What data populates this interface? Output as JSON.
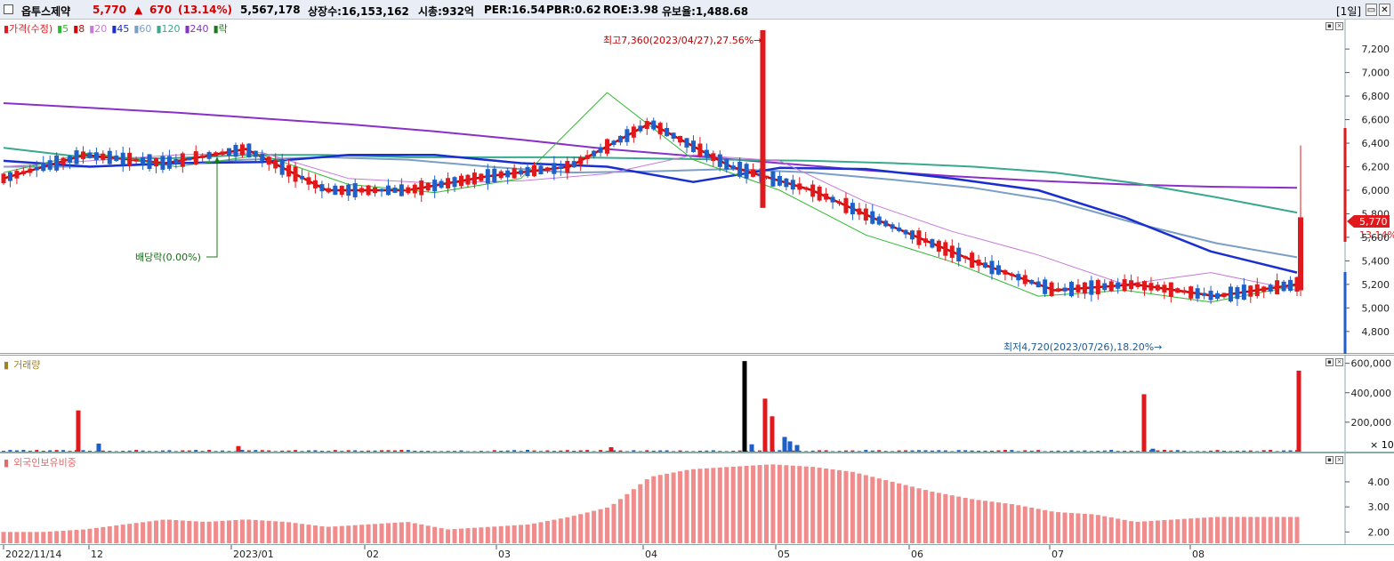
{
  "header": {
    "stock_name": "옵투스제약",
    "price": "5,770",
    "change_arrow": "▲",
    "change": "670",
    "change_pct": "(13.14%)",
    "volume": "5,567,178",
    "listed_shares": "상장수:16,153,162",
    "market_cap": "시총:932억",
    "per": "PER:16.54",
    "pbr": "PBR:0.62",
    "roe": "ROE:3.98",
    "retention": "유보율:1,488.68",
    "period_button": "[1일]"
  },
  "colors": {
    "up": "#e0191c",
    "down": "#1e5fc8",
    "ma5": "#2fb82f",
    "ma8": "#d40000",
    "ma20": "#c77ad8",
    "ma45": "#1a2fcf",
    "ma60": "#7a9ec6",
    "ma120": "#39a98e",
    "ma240": "#8b2fc9"
  },
  "price_panel": {
    "legend": [
      {
        "text": "가격(수정)",
        "color": "#e0191c"
      },
      {
        "text": "5",
        "color": "#2fb82f"
      },
      {
        "text": "8",
        "color": "#d40000"
      },
      {
        "text": "20",
        "color": "#c77ad8"
      },
      {
        "text": "45",
        "color": "#1a2fcf"
      },
      {
        "text": "60",
        "color": "#7a9ec6"
      },
      {
        "text": "120",
        "color": "#39a98e"
      },
      {
        "text": "240",
        "color": "#8b2fc9"
      },
      {
        "text": "락",
        "color": "#1a7a1a"
      }
    ],
    "annotation_high": "최고7,360(2023/04/27),27.56%→",
    "annotation_low": "최저4,720(2023/07/26),18.20%→",
    "annotation_dividend": "배당락(0.00%)",
    "price_tag": "5,770",
    "pct_tag": "13.14%"
  },
  "volume_panel": {
    "legend": "거래량",
    "multiplier": "× 10"
  },
  "foreign_panel": {
    "legend": "외국인보유비중"
  },
  "chart_data": [
    {
      "type": "candlestick",
      "title": "가격(수정)",
      "y_ticks": [
        4800,
        5000,
        5200,
        5400,
        5600,
        5800,
        6000,
        6200,
        6400,
        6600,
        6800,
        7000,
        7200
      ],
      "ylim": [
        4640,
        7420
      ],
      "x_ticks": [
        "2022/11/14",
        "12",
        "2023/01",
        "02",
        "03",
        "04",
        "05",
        "06",
        "07",
        "08"
      ],
      "last_close": 5770,
      "high": {
        "value": 7360,
        "date": "2023/04/27",
        "pct": 27.56
      },
      "low": {
        "value": 4720,
        "date": "2023/07/26",
        "pct": 18.2
      },
      "ma_series": [
        {
          "name": "240",
          "values": [
            6740,
            6700,
            6660,
            6610,
            6560,
            6500,
            6430,
            6350,
            6290,
            6230,
            6170,
            6120,
            6080,
            6050,
            6030,
            6020
          ]
        },
        {
          "name": "120",
          "values": [
            6360,
            6280,
            6270,
            6300,
            6300,
            6280,
            6280,
            6280,
            6270,
            6260,
            6250,
            6230,
            6200,
            6150,
            6060,
            5940,
            5810
          ]
        },
        {
          "name": "60",
          "values": [
            6200,
            6200,
            6220,
            6260,
            6280,
            6260,
            6200,
            6150,
            6160,
            6180,
            6150,
            6090,
            6020,
            5910,
            5720,
            5550,
            5430
          ]
        },
        {
          "name": "45",
          "values": [
            6250,
            6200,
            6230,
            6240,
            6300,
            6300,
            6230,
            6200,
            6070,
            6190,
            6180,
            6100,
            6000,
            5770,
            5480,
            5300
          ]
        },
        {
          "name": "20",
          "values": [
            6200,
            6250,
            6300,
            6320,
            6100,
            6060,
            6080,
            6140,
            6300,
            6250,
            5900,
            5650,
            5450,
            5200,
            5300,
            5150
          ]
        },
        {
          "name": "8",
          "values": [
            6100,
            6300,
            6230,
            6350,
            6000,
            6000,
            6120,
            6200,
            6570,
            6200,
            6000,
            5690,
            5400,
            5150,
            5200,
            5100,
            5200
          ]
        },
        {
          "name": "5",
          "values": [
            6150,
            6320,
            6200,
            6300,
            6050,
            5980,
            6100,
            6830,
            6260,
            6000,
            5620,
            5390,
            5100,
            5150,
            5050,
            5190
          ]
        }
      ]
    },
    {
      "type": "bar",
      "title": "거래량",
      "y_ticks": [
        200000,
        400000,
        600000
      ],
      "notable_values": [
        {
          "date": "12",
          "value": 280000
        },
        {
          "date": "04",
          "value": 615000
        },
        {
          "date": "05",
          "value": 360000
        },
        {
          "date": "07",
          "value": 390000
        },
        {
          "date": "08",
          "value": 550000
        }
      ]
    },
    {
      "type": "bar",
      "title": "외국인보유비중",
      "y_ticks": [
        2.0,
        3.0,
        4.0
      ],
      "values": [
        2.0,
        2.0,
        2.1,
        2.3,
        2.5,
        2.4,
        2.5,
        2.4,
        2.2,
        2.3,
        2.4,
        2.1,
        2.2,
        2.3,
        2.6,
        3.0,
        4.2,
        4.5,
        4.6,
        4.7,
        4.6,
        4.4,
        4.0,
        3.6,
        3.3,
        3.1,
        2.8,
        2.7,
        2.4,
        2.5,
        2.6,
        2.6,
        2.6
      ]
    }
  ]
}
